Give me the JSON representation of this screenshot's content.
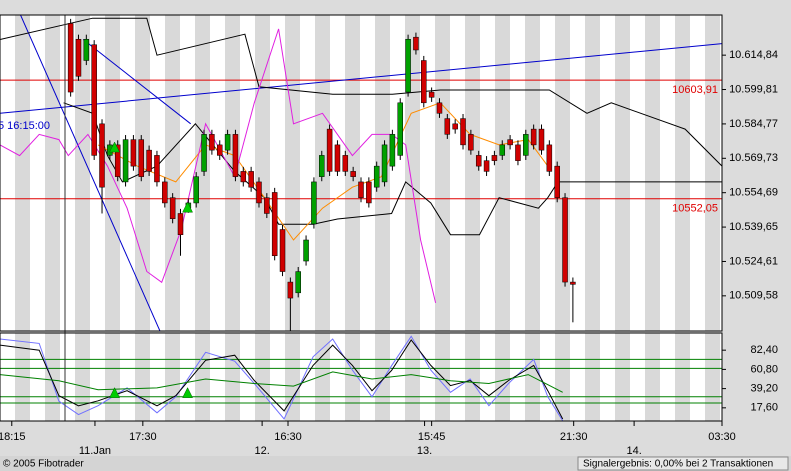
{
  "chart_data": [
    {
      "type": "candlestick",
      "x": [
        9,
        10,
        11,
        12,
        13,
        14,
        15,
        16,
        17,
        18,
        19,
        20,
        21,
        22,
        23,
        24,
        25,
        26,
        27,
        28,
        29,
        30,
        31,
        32,
        33,
        34,
        35,
        36,
        37,
        38,
        39,
        40,
        41,
        42,
        43,
        44,
        45,
        46,
        47,
        48,
        49,
        50,
        51,
        52,
        53,
        54,
        55,
        56,
        57,
        58,
        59,
        60,
        61,
        62,
        63,
        64,
        65,
        66,
        67,
        68,
        69,
        70,
        71,
        72,
        73
      ],
      "open": [
        10628.7,
        10621.8,
        10612.5,
        10619.4,
        10584.8,
        10571.0,
        10575.6,
        10559.4,
        10577.9,
        10577.9,
        10573.3,
        10571.0,
        10559.4,
        10552.5,
        10545.6,
        10547.9,
        10550.2,
        10564.0,
        10580.2,
        10575.6,
        10573.3,
        10580.2,
        10564.0,
        10564.0,
        10559.4,
        10552.5,
        10554.8,
        10538.6,
        10515.6,
        10510.9,
        10524.8,
        10541.0,
        10561.7,
        10582.5,
        10575.6,
        10571.0,
        10564.0,
        10559.4,
        10559.4,
        10557.1,
        10559.4,
        10566.3,
        10571.0,
        10598.7,
        10622.7,
        10612.5,
        10598.7,
        10594.0,
        10587.1,
        10584.8,
        10587.1,
        10580.2,
        10571.0,
        10568.7,
        10571.0,
        10571.0,
        10577.9,
        10575.6,
        10571.0,
        10582.5,
        10582.5,
        10575.6,
        10566.3,
        10552.5,
        10515.6
      ],
      "high": [
        10630.7,
        10623.8,
        10623.8,
        10621.4,
        10586.8,
        10577.6,
        10577.6,
        10579.9,
        10579.9,
        10579.9,
        10575.3,
        10573.0,
        10561.4,
        10554.5,
        10547.6,
        10552.2,
        10563.7,
        10582.2,
        10582.2,
        10577.6,
        10582.2,
        10582.2,
        10566.0,
        10566.0,
        10561.4,
        10554.5,
        10556.8,
        10540.6,
        10517.6,
        10522.2,
        10536.0,
        10561.4,
        10573.0,
        10584.5,
        10577.6,
        10573.0,
        10566.0,
        10561.4,
        10561.4,
        10568.3,
        10577.6,
        10582.2,
        10596.0,
        10623.8,
        10624.7,
        10614.5,
        10600.7,
        10596.0,
        10589.1,
        10586.8,
        10589.1,
        10582.2,
        10573.0,
        10570.7,
        10573.0,
        10577.6,
        10579.9,
        10577.6,
        10582.2,
        10584.5,
        10584.5,
        10577.6,
        10568.3,
        10554.5,
        10517.6
      ],
      "low": [
        10596.7,
        10603.6,
        10610.5,
        10569.0,
        10545.6,
        10569.0,
        10559.7,
        10557.4,
        10564.3,
        10559.7,
        10562.0,
        10557.4,
        10548.2,
        10541.3,
        10527.1,
        10545.9,
        10548.2,
        10562.0,
        10571.3,
        10569.0,
        10571.3,
        10559.7,
        10557.4,
        10555.1,
        10548.2,
        10543.6,
        10525.1,
        10518.2,
        10492.5,
        10508.9,
        10522.8,
        10539.0,
        10559.7,
        10562.0,
        10562.0,
        10562.0,
        10559.7,
        10550.5,
        10548.2,
        10555.1,
        10557.4,
        10564.3,
        10569.0,
        10596.7,
        10615.1,
        10592.0,
        10594.4,
        10587.4,
        10578.2,
        10580.5,
        10573.6,
        10571.3,
        10564.3,
        10562.0,
        10566.7,
        10569.0,
        10573.6,
        10566.7,
        10569.0,
        10573.6,
        10571.3,
        10562.0,
        10550.5,
        10513.6,
        10498.0
      ],
      "close": [
        10598.7,
        10605.6,
        10621.8,
        10571.0,
        10557.1,
        10575.6,
        10561.7,
        10577.9,
        10566.3,
        10561.7,
        10564.0,
        10559.4,
        10550.2,
        10543.3,
        10536.3,
        10550.2,
        10561.7,
        10580.2,
        10573.3,
        10571.0,
        10580.2,
        10561.7,
        10559.4,
        10557.1,
        10550.2,
        10545.6,
        10527.1,
        10520.2,
        10508.6,
        10520.2,
        10534.0,
        10559.4,
        10571.0,
        10564.0,
        10564.0,
        10564.0,
        10561.7,
        10552.5,
        10550.2,
        10566.3,
        10575.6,
        10580.2,
        10594.0,
        10621.8,
        10617.1,
        10594.0,
        10596.4,
        10589.4,
        10580.2,
        10582.5,
        10575.6,
        10573.3,
        10566.3,
        10564.0,
        10568.7,
        10575.6,
        10575.6,
        10568.7,
        10580.2,
        10575.6,
        10573.3,
        10564.0,
        10552.5,
        10515.6,
        10514.6
      ],
      "up_color": "#00a000",
      "down_color": "#d00000",
      "xlim": [
        0,
        92
      ],
      "ylim": [
        10494.2,
        10632.4
      ],
      "yticks": [
        {
          "value": 10614.84,
          "label": "10.614,84"
        },
        {
          "value": 10599.81,
          "label": "10.599,81"
        },
        {
          "value": 10584.77,
          "label": "10.584,77"
        },
        {
          "value": 10569.73,
          "label": "10.569,73"
        },
        {
          "value": 10554.69,
          "label": "10.554,69"
        },
        {
          "value": 10539.65,
          "label": "10.539,65"
        },
        {
          "value": 10524.61,
          "label": "10.524,61"
        },
        {
          "value": 10509.58,
          "label": "10.509,58"
        }
      ],
      "xticks": [
        {
          "value": 1.5,
          "label": "18:15"
        },
        {
          "value": 18.2,
          "label": "17:30"
        },
        {
          "value": 36.7,
          "label": "16:30"
        },
        {
          "value": 55.0,
          "label": "15:45"
        },
        {
          "value": 73.1,
          "label": "21:30"
        },
        {
          "value": 92,
          "label": "03:30"
        }
      ],
      "date_ticks": [
        {
          "value": 12.1,
          "label": "11.Jan"
        },
        {
          "value": 33.4,
          "label": "12."
        },
        {
          "value": 54.1,
          "label": "13."
        },
        {
          "value": 80.8,
          "label": "14."
        }
      ],
      "levels": [
        {
          "value": 10603.91,
          "label": "10603,91"
        },
        {
          "value": 10552.05,
          "label": "10552,05"
        }
      ],
      "level_color": "#e00000",
      "lines": [
        {
          "color": "#000000",
          "x": [
            0,
            11.8,
            18.7,
            20.0,
            31.2,
            33.0,
            42.4,
            50.0,
            56.1,
            70.0,
            74.8,
            77.9,
            87.3,
            92
          ],
          "values": [
            10621.7,
            10631.0,
            10631.0,
            10614.8,
            10624.0,
            10601.0,
            10597.7,
            10597.7,
            10599.6,
            10599.6,
            10589.4,
            10594.0,
            10582.5,
            10566.3
          ]
        },
        {
          "color": "#000000",
          "x": [
            8.1,
            11.8,
            13.7,
            15.6,
            20.0,
            24.9,
            29.9,
            33.7,
            35.5,
            39.9,
            43.0,
            49.9,
            51.7,
            54.9,
            57.4,
            61.1,
            63.6,
            68.6,
            69.8,
            71.1,
            92
          ],
          "values": [
            10594.0,
            10589.4,
            10570.9,
            10559.4,
            10566.3,
            10584.8,
            10564.0,
            10552.5,
            10540.9,
            10540.9,
            10543.2,
            10545.6,
            10559.4,
            10550.2,
            10536.3,
            10536.3,
            10552.5,
            10547.9,
            10552.5,
            10559.4,
            10559.4
          ]
        },
        {
          "color": "#ff8c00",
          "x": [
            12.5,
            17.5,
            22.4,
            26.2,
            29.9,
            33.7,
            37.4,
            41.1,
            44.9,
            48.6,
            52.4,
            56.1,
            59.9,
            63.6,
            67.3,
            69.8
          ],
          "values": [
            10575.6,
            10566.3,
            10559.4,
            10575.6,
            10570.9,
            10552.5,
            10534.0,
            10547.9,
            10557.1,
            10561.7,
            10589.4,
            10594.0,
            10580.2,
            10575.6,
            10577.9,
            10566.3
          ]
        },
        {
          "color": "#e020e0",
          "x": [
            0,
            2.5,
            5.0,
            7.5,
            8.7,
            11.2,
            13.7,
            16.2,
            18.7,
            20.6,
            23.1,
            26.2,
            29.9,
            32.4,
            35.5,
            37.4,
            41.1,
            44.9,
            47.4,
            49.9,
            51.7,
            53.6,
            55.5
          ],
          "values": [
            10575.6,
            10570.9,
            10580.2,
            10577.9,
            10570.9,
            10580.2,
            10566.3,
            10547.9,
            10520.2,
            10515.5,
            10538.6,
            10584.8,
            10561.7,
            10594.0,
            10626.3,
            10584.8,
            10589.4,
            10570.9,
            10580.2,
            10580.2,
            10575.6,
            10534.0,
            10506.5
          ]
        }
      ],
      "trendlines": [
        {
          "color": "#0000cc",
          "x": [
            0,
            92
          ],
          "values": [
            10589.4,
            10619.9
          ]
        },
        {
          "color": "#0000cc",
          "x": [
            2.5,
            21.2
          ],
          "values": [
            10633.3,
            10487.8
          ]
        },
        {
          "color": "#0000cc",
          "x": [
            10.6,
            24.3
          ],
          "values": [
            10621.7,
            10584.8
          ]
        }
      ],
      "signals": {
        "color": "#00cc00",
        "x": [
          14.6,
          23.9
        ],
        "values": [
          10574.2,
          10547.9
        ]
      },
      "annotation": "5 16:15:00"
    },
    {
      "type": "line",
      "xlim": [
        0,
        92
      ],
      "ylim": [
        2.8,
        101.7
      ],
      "yticks": [
        {
          "value": 82.4,
          "label": "82,40"
        },
        {
          "value": 60.8,
          "label": "60,80"
        },
        {
          "value": 39.2,
          "label": "39,20"
        },
        {
          "value": 17.6,
          "label": "17,60"
        }
      ],
      "levels": [
        72,
        62,
        30,
        23
      ],
      "level_color": "#008000",
      "series": [
        {
          "color": "#7070ff",
          "x": [
            0,
            5.0,
            7.5,
            10.0,
            12.5,
            16.2,
            20.0,
            22.4,
            26.2,
            29.9,
            32.4,
            36.2,
            39.9,
            42.4,
            44.9,
            47.4,
            49.9,
            52.4,
            54.9,
            57.4,
            59.9,
            62.3,
            64.8,
            68.0,
            69.8,
            71.7
          ],
          "values": [
            95,
            90,
            25,
            10,
            20,
            40,
            12,
            30,
            80,
            70,
            45,
            5,
            75,
            95,
            60,
            30,
            65,
            98,
            60,
            35,
            50,
            20,
            45,
            72,
            30,
            3
          ]
        },
        {
          "color": "#000000",
          "x": [
            0,
            5.0,
            7.5,
            10.0,
            12.5,
            16.2,
            20.0,
            22.4,
            26.2,
            29.9,
            32.4,
            36.2,
            39.9,
            42.4,
            44.9,
            47.4,
            49.9,
            52.4,
            54.9,
            57.4,
            59.9,
            62.3,
            64.8,
            68.0,
            69.8,
            71.7
          ],
          "values": [
            88.1,
            82.4,
            31.2,
            19.9,
            25.5,
            36.9,
            19.9,
            31.2,
            71.0,
            76.7,
            48.3,
            14.2,
            65.3,
            88.1,
            65.3,
            36.9,
            59.7,
            93.8,
            65.3,
            42.6,
            48.3,
            31.2,
            48.3,
            65.3,
            36.9,
            5.1
          ]
        },
        {
          "color": "#008000",
          "x": [
            0,
            7.5,
            12.5,
            20,
            26.2,
            32.4,
            37.4,
            42.4,
            47.4,
            52.4,
            57.4,
            62.3,
            67.3,
            71.7
          ],
          "values": [
            55,
            48,
            38,
            40,
            50,
            45,
            42,
            58,
            50,
            55,
            48,
            45,
            55,
            35
          ]
        }
      ],
      "signals": {
        "color": "#00cc00",
        "x": [
          14.6,
          23.9
        ],
        "values": [
          33.5,
          33.5
        ]
      }
    }
  ],
  "footer": {
    "copyright": "© 2005 Fibotrader",
    "status": "Signalergebnis: 0,00% bei 2 Transaktionen"
  }
}
